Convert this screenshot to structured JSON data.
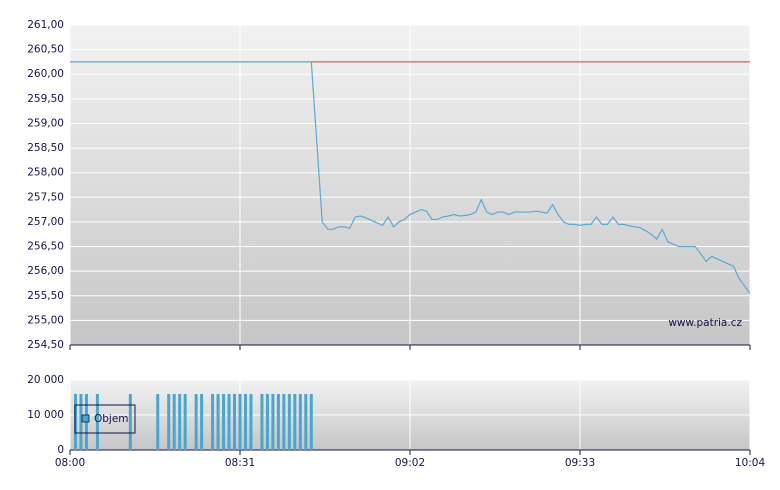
{
  "chart_data": [
    {
      "type": "line",
      "x": [
        "08:00",
        "08:44",
        "08:46",
        "08:47",
        "08:48",
        "08:49",
        "08:50",
        "08:51",
        "08:52",
        "08:53",
        "08:54",
        "08:55",
        "08:56",
        "08:57",
        "08:58",
        "08:59",
        "09:00",
        "09:01",
        "09:02",
        "09:03",
        "09:04",
        "09:05",
        "09:06",
        "09:07",
        "09:08",
        "09:09",
        "09:10",
        "09:11",
        "09:12",
        "09:13",
        "09:14",
        "09:15",
        "09:16",
        "09:17",
        "09:18",
        "09:19",
        "09:20",
        "09:21",
        "09:22",
        "09:23",
        "09:24",
        "09:25",
        "09:26",
        "09:27",
        "09:28",
        "09:29",
        "09:30",
        "09:31",
        "09:32",
        "09:33",
        "09:34",
        "09:35",
        "09:36",
        "09:37",
        "09:38",
        "09:39",
        "09:40",
        "09:41",
        "09:42",
        "09:43",
        "09:44",
        "09:45",
        "09:46",
        "09:47",
        "09:48",
        "09:49",
        "09:50",
        "09:51",
        "09:52",
        "09:53",
        "09:54",
        "09:55",
        "09:56",
        "09:57",
        "09:58",
        "09:59",
        "10:00",
        "10:01",
        "10:02",
        "10:03",
        "10:04"
      ],
      "series": [
        {
          "color": "#5aaad2",
          "values": [
            260.25,
            260.25,
            257.0,
            256.85,
            256.85,
            256.9,
            256.9,
            256.87,
            257.1,
            257.12,
            257.08,
            257.03,
            256.98,
            256.93,
            257.1,
            256.9,
            257.0,
            257.05,
            257.15,
            257.2,
            257.25,
            257.22,
            257.05,
            257.05,
            257.1,
            257.12,
            257.15,
            257.12,
            257.13,
            257.15,
            257.2,
            257.45,
            257.2,
            257.15,
            257.2,
            257.2,
            257.15,
            257.2,
            257.2,
            257.2,
            257.2,
            257.22,
            257.2,
            257.18,
            257.35,
            257.15,
            257.0,
            256.95,
            256.95,
            256.93,
            256.95,
            256.95,
            257.1,
            256.95,
            256.95,
            257.1,
            256.95,
            256.95,
            256.92,
            256.9,
            256.88,
            256.82,
            256.75,
            256.65,
            256.85,
            256.6,
            256.55,
            256.5,
            256.5,
            256.5,
            256.5,
            256.35,
            256.2,
            256.3,
            256.25,
            256.2,
            256.15,
            256.1,
            255.85,
            255.7,
            255.55
          ]
        }
      ],
      "reference_line": 260.25,
      "reference_color": "#d23c32",
      "xlim": [
        "08:00",
        "10:04"
      ],
      "ylim": [
        254.5,
        261
      ],
      "yticks": [
        {
          "value": 254.5,
          "label": "254,50"
        },
        {
          "value": 255,
          "label": "255,00"
        },
        {
          "value": 255.5,
          "label": "255,50"
        },
        {
          "value": 256,
          "label": "256,00"
        },
        {
          "value": 256.5,
          "label": "256,50"
        },
        {
          "value": 257,
          "label": "257,00"
        },
        {
          "value": 257.5,
          "label": "257,50"
        },
        {
          "value": 258,
          "label": "258,00"
        },
        {
          "value": 258.5,
          "label": "258,50"
        },
        {
          "value": 259,
          "label": "259,00"
        },
        {
          "value": 259.5,
          "label": "259,50"
        },
        {
          "value": 260,
          "label": "260,00"
        },
        {
          "value": 260.5,
          "label": "260,50"
        },
        {
          "value": 261,
          "label": "261,00"
        }
      ],
      "grid": true,
      "watermark": "www.patria.cz"
    },
    {
      "type": "bar",
      "name": "Objem",
      "color": "#4ba5cd",
      "x": [
        "08:01",
        "08:02",
        "08:03",
        "08:05",
        "08:11",
        "08:16",
        "08:18",
        "08:19",
        "08:20",
        "08:21",
        "08:23",
        "08:24",
        "08:26",
        "08:27",
        "08:28",
        "08:29",
        "08:30",
        "08:31",
        "08:32",
        "08:33",
        "08:35",
        "08:36",
        "08:37",
        "08:38",
        "08:39",
        "08:40",
        "08:41",
        "08:42",
        "08:43",
        "08:44"
      ],
      "values": [
        16000,
        16000,
        16000,
        16000,
        16000,
        16000,
        16000,
        16000,
        16000,
        16000,
        16000,
        16000,
        16000,
        16000,
        16000,
        16000,
        16000,
        16000,
        16000,
        16000,
        16000,
        16000,
        16000,
        16000,
        16000,
        16000,
        16000,
        16000,
        16000,
        16000
      ],
      "xlim": [
        "08:00",
        "10:04"
      ],
      "xticks": [
        "08:00",
        "08:31",
        "09:02",
        "09:33",
        "10:04"
      ],
      "ylim": [
        0,
        20000
      ],
      "yticks": [
        0,
        {
          "value": 10000,
          "label": "10 000"
        },
        {
          "value": 20000,
          "label": "20 000"
        }
      ],
      "grid": true,
      "legend": "top-left"
    }
  ]
}
